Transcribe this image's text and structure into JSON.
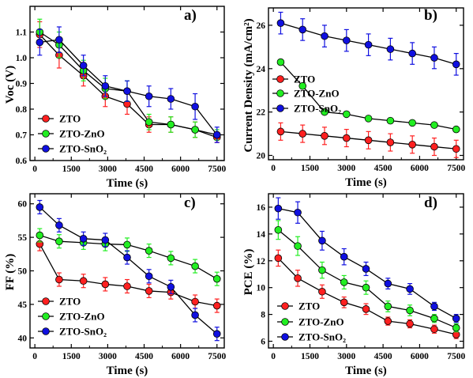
{
  "colors": {
    "ZTO": "#ff2020",
    "ZTO-ZnO": "#22ee22",
    "ZTO-SnO2": "#1010e0",
    "line": "#000000"
  },
  "legend_labels": [
    "ZTO",
    "ZTO-ZnO",
    "ZTO-SnO₂"
  ],
  "chart_data": [
    {
      "type": "line",
      "panel_label": "a)",
      "xlabel": "Time (s)",
      "ylabel": "Voc (V)",
      "xlim": [
        -200,
        7800
      ],
      "ylim": [
        0.6,
        1.2
      ],
      "xticks": [
        0,
        1500,
        3000,
        4500,
        6000,
        7500
      ],
      "yticks": [
        0.6,
        0.7,
        0.8,
        0.9,
        1.0,
        1.1
      ],
      "ytick_labels": [
        "0.6",
        "0.7",
        "0.8",
        "0.9",
        "1.0",
        "1.1"
      ],
      "legend_position": "bottom-left",
      "x": [
        200,
        1000,
        2000,
        2900,
        3800,
        4700,
        5600,
        6600,
        7500
      ],
      "series": [
        {
          "name": "ZTO",
          "values": [
            1.09,
            1.01,
            0.93,
            0.85,
            0.82,
            0.74,
            0.74,
            0.72,
            0.69
          ],
          "err": [
            0.05,
            0.05,
            0.04,
            0.04,
            0.04,
            0.03,
            0.03,
            0.03,
            0.02
          ]
        },
        {
          "name": "ZTO-ZnO",
          "values": [
            1.1,
            1.05,
            0.95,
            0.88,
            0.87,
            0.75,
            0.74,
            0.72,
            0.7
          ],
          "err": [
            0.05,
            0.05,
            0.04,
            0.04,
            0.04,
            0.03,
            0.03,
            0.03,
            0.02
          ]
        },
        {
          "name": "ZTO-SnO2",
          "values": [
            1.06,
            1.07,
            0.97,
            0.89,
            0.87,
            0.85,
            0.84,
            0.81,
            0.7
          ],
          "err": [
            0.05,
            0.05,
            0.04,
            0.04,
            0.04,
            0.04,
            0.04,
            0.05,
            0.03
          ]
        }
      ]
    },
    {
      "type": "line",
      "panel_label": "b)",
      "xlabel": "Time (s)",
      "ylabel": "Current Density (mA/cm²)",
      "xlim": [
        -200,
        7800
      ],
      "ylim": [
        19.8,
        26.8
      ],
      "xticks": [
        0,
        1500,
        3000,
        4500,
        6000,
        7500
      ],
      "yticks": [
        20,
        22,
        24,
        26
      ],
      "ytick_labels": [
        "20",
        "22",
        "24",
        "26"
      ],
      "legend_position": "center-left",
      "x": [
        300,
        1200,
        2100,
        3000,
        3900,
        4800,
        5700,
        6600,
        7500
      ],
      "series": [
        {
          "name": "ZTO",
          "values": [
            21.1,
            21.0,
            20.9,
            20.8,
            20.7,
            20.6,
            20.5,
            20.4,
            20.3
          ],
          "err": [
            0.4,
            0.4,
            0.4,
            0.4,
            0.4,
            0.4,
            0.4,
            0.4,
            0.4
          ]
        },
        {
          "name": "ZTO-ZnO",
          "values": [
            24.3,
            23.2,
            22.0,
            21.9,
            21.7,
            21.6,
            21.5,
            21.4,
            21.2
          ],
          "err": [
            0,
            0,
            0,
            0,
            0,
            0,
            0,
            0,
            0
          ]
        },
        {
          "name": "ZTO-SnO2",
          "values": [
            26.1,
            25.8,
            25.5,
            25.3,
            25.1,
            24.9,
            24.7,
            24.5,
            24.2
          ],
          "err": [
            0.5,
            0.5,
            0.5,
            0.5,
            0.5,
            0.5,
            0.5,
            0.5,
            0.5
          ]
        }
      ]
    },
    {
      "type": "line",
      "panel_label": "c)",
      "xlabel": "Time (s)",
      "ylabel": "FF (%)",
      "xlim": [
        -200,
        7800
      ],
      "ylim": [
        38.5,
        61.5
      ],
      "xticks": [
        0,
        1500,
        3000,
        4500,
        6000,
        7500
      ],
      "yticks": [
        40,
        45,
        50,
        55,
        60
      ],
      "ytick_labels": [
        "40",
        "45",
        "50",
        "55",
        "60"
      ],
      "legend_position": "bottom-left",
      "x": [
        200,
        1000,
        2000,
        2900,
        3800,
        4700,
        5600,
        6600,
        7500
      ],
      "series": [
        {
          "name": "ZTO",
          "values": [
            54.0,
            48.7,
            48.5,
            48.0,
            47.7,
            47.0,
            46.8,
            45.4,
            44.8
          ],
          "err": [
            1.0,
            1.0,
            1.0,
            1.0,
            1.0,
            1.0,
            1.0,
            1.0,
            1.0
          ]
        },
        {
          "name": "ZTO-ZnO",
          "values": [
            55.3,
            54.4,
            54.2,
            54.0,
            53.9,
            53.0,
            51.9,
            50.7,
            48.8
          ],
          "err": [
            1.0,
            1.0,
            1.0,
            1.0,
            1.0,
            1.0,
            1.0,
            1.0,
            1.0
          ]
        },
        {
          "name": "ZTO-SnO2",
          "values": [
            59.5,
            56.8,
            54.8,
            54.6,
            52.0,
            49.2,
            47.6,
            43.4,
            40.6
          ],
          "err": [
            1.0,
            1.0,
            1.0,
            1.0,
            1.0,
            1.0,
            1.0,
            1.0,
            1.0
          ]
        }
      ]
    },
    {
      "type": "line",
      "panel_label": "d)",
      "xlabel": "Time (s)",
      "ylabel": "PCE (%)",
      "xlim": [
        -200,
        7800
      ],
      "ylim": [
        5.5,
        17.0
      ],
      "xticks": [
        0,
        1500,
        3000,
        4500,
        6000,
        7500
      ],
      "yticks": [
        6,
        8,
        10,
        12,
        14,
        16
      ],
      "ytick_labels": [
        "6",
        "8",
        "10",
        "12",
        "14",
        "16"
      ],
      "legend_position": "bottom-left",
      "x": [
        200,
        1000,
        2000,
        2900,
        3800,
        4700,
        5600,
        6600,
        7500
      ],
      "series": [
        {
          "name": "ZTO",
          "values": [
            12.2,
            10.7,
            9.7,
            8.9,
            8.4,
            7.5,
            7.3,
            6.9,
            6.5
          ],
          "err": [
            0.6,
            0.6,
            0.5,
            0.4,
            0.4,
            0.3,
            0.3,
            0.3,
            0.3
          ]
        },
        {
          "name": "ZTO-ZnO",
          "values": [
            14.3,
            13.1,
            11.3,
            10.4,
            10.0,
            8.6,
            8.3,
            7.7,
            7.0
          ],
          "err": [
            0.7,
            0.7,
            0.6,
            0.5,
            0.5,
            0.4,
            0.4,
            0.3,
            0.3
          ]
        },
        {
          "name": "ZTO-SnO2",
          "values": [
            15.9,
            15.6,
            13.5,
            12.3,
            11.4,
            10.3,
            9.9,
            8.6,
            7.7
          ],
          "err": [
            0.8,
            0.8,
            0.7,
            0.6,
            0.5,
            0.4,
            0.4,
            0.3,
            0.3
          ]
        }
      ]
    }
  ]
}
